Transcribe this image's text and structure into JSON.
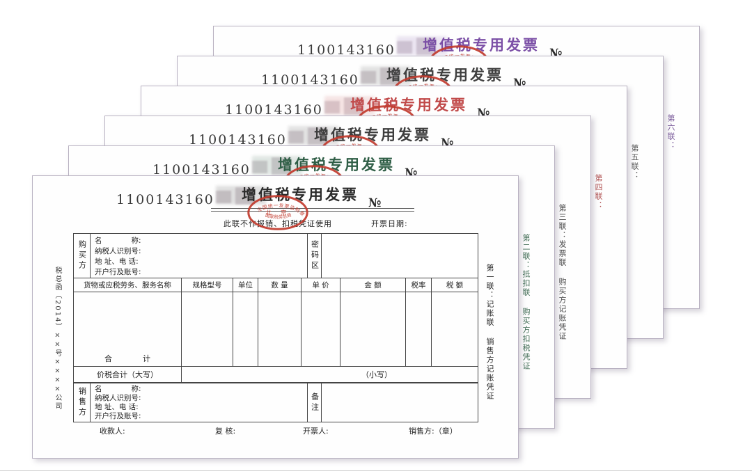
{
  "invoice": {
    "code": "1100143160",
    "title": "增值税专用发票",
    "number_symbol": "№",
    "subtitle": "此联不作报销、扣税凭证使用",
    "issue_date_label": "开票日期:",
    "stamp": {
      "arc_top": "全国统一发票监制章",
      "middle": "北 京",
      "arc_bottom": "国家税务总局",
      "color": "#c23b2e"
    },
    "copies": [
      {
        "num": 1,
        "label": "第一联：记账联 销售方记账凭证",
        "title_color": "#2b2b2b",
        "label_color": "#2b2b2b"
      },
      {
        "num": 2,
        "label": "第二联：抵扣联 购买方扣税凭证",
        "title_color": "#2f5e46",
        "label_color": "#3f6b53"
      },
      {
        "num": 3,
        "label": "第三联：发票联 购买方记账凭证",
        "title_color": "#3d3d3d",
        "label_color": "#4a4a4a"
      },
      {
        "num": 4,
        "label": "第四联：",
        "title_color": "#c14a4a",
        "label_color": "#b05050"
      },
      {
        "num": 5,
        "label": "第五联：",
        "title_color": "#3f3f3f",
        "label_color": "#555555"
      },
      {
        "num": 6,
        "label": "第六联：",
        "title_color": "#7b4fa6",
        "label_color": "#7a5a9a"
      }
    ]
  },
  "form": {
    "buyer_label": "购买方",
    "seller_label": "销售方",
    "password_label": "密码区",
    "remark_label": "备注",
    "party_fields": [
      "名　　　　称:",
      "纳税人识别号:",
      "地 址、电 话:",
      "开户行及账号:"
    ],
    "item_headers": [
      "货物或应税劳务、服务名称",
      "规格型号",
      "单位",
      "数 量",
      "单 价",
      "金 额",
      "税率",
      "税 额"
    ],
    "sum_label": "合　　　　计",
    "total_words_label": "价税合计（大写）",
    "total_figures_label": "（小写）",
    "footer": {
      "payee": "收款人:",
      "reviewer": "复 核:",
      "drawer": "开票人:",
      "seller_seal": "销售方:（章）"
    },
    "left_note": "税总函〔2014〕××号××××公司"
  }
}
